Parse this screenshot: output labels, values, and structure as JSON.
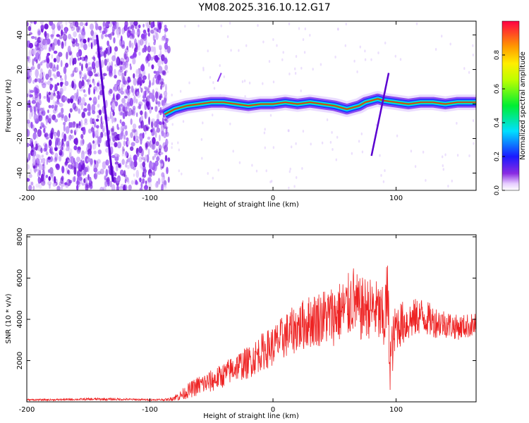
{
  "figure": {
    "title": "YM08.2025.316.10.12.G17"
  },
  "chart_data": [
    {
      "type": "heatmap",
      "title": "YM08.2025.316.10.12.G17",
      "xlabel": "Height of straight line (km)",
      "ylabel": "Frequency (Hz)",
      "xlim": [
        -200,
        165
      ],
      "ylim": [
        -50,
        48
      ],
      "x_ticks": [
        -200,
        -100,
        0,
        100
      ],
      "y_ticks": [
        -40,
        -20,
        0,
        20,
        40
      ],
      "x_tick_labels": [
        "-200",
        "-100",
        "0",
        "100"
      ],
      "y_tick_labels": [
        "-40",
        "-20",
        "0",
        "20",
        "40"
      ],
      "noise_region_x": [
        -200,
        -88
      ],
      "signal_track": {
        "x": [
          -88,
          -80,
          -70,
          -60,
          -50,
          -40,
          -30,
          -20,
          -10,
          0,
          10,
          20,
          30,
          40,
          50,
          55,
          60,
          65,
          70,
          75,
          80,
          85,
          90,
          100,
          110,
          120,
          130,
          140,
          150,
          160,
          165
        ],
        "frequency_hz": [
          -6,
          -3,
          -1,
          0,
          1,
          1,
          0,
          -1,
          0,
          0,
          1,
          0,
          1,
          0,
          -1,
          -2,
          -3,
          -2,
          -1,
          1,
          2,
          3,
          2,
          1,
          0,
          1,
          1,
          0,
          1,
          1,
          1
        ]
      },
      "colorbar": {
        "label": "Normalized spectral amplitude",
        "range": [
          0,
          1
        ],
        "ticks": [
          0.0,
          0.2,
          0.4,
          0.6,
          0.8
        ],
        "tick_labels": [
          "0.0",
          "0.2",
          "0.4",
          "0.6",
          "0.8"
        ]
      }
    },
    {
      "type": "line",
      "xlabel": "Height of straight line (km)",
      "ylabel": "SNR (10 * v/v)",
      "xlim": [
        -200,
        165
      ],
      "ylim": [
        0,
        8100
      ],
      "x_ticks": [
        -200,
        -100,
        0,
        100
      ],
      "y_ticks": [
        2000,
        4000,
        6000,
        8000
      ],
      "x_tick_labels": [
        "-200",
        "-100",
        "0",
        "100"
      ],
      "y_tick_labels": [
        "2000",
        "4000",
        "6000",
        "8000"
      ],
      "series": [
        {
          "name": "SNR",
          "color": "#ee2222",
          "x": [
            -200,
            -180,
            -160,
            -140,
            -120,
            -100,
            -85,
            -75,
            -70,
            -60,
            -50,
            -40,
            -30,
            -20,
            -10,
            0,
            10,
            20,
            30,
            40,
            50,
            55,
            60,
            65,
            70,
            75,
            80,
            85,
            90,
            93,
            95,
            100,
            110,
            120,
            130,
            140,
            150,
            160,
            165
          ],
          "y": [
            100,
            100,
            120,
            130,
            120,
            100,
            110,
            300,
            500,
            800,
            1000,
            1300,
            1700,
            1900,
            2400,
            2700,
            3200,
            3600,
            3900,
            4100,
            4200,
            4400,
            4500,
            5000,
            4400,
            4600,
            4500,
            4400,
            3800,
            5200,
            2000,
            3700,
            3900,
            4200,
            3900,
            3800,
            3600,
            3700,
            3700
          ],
          "amplitude": [
            40,
            40,
            50,
            60,
            50,
            40,
            60,
            250,
            350,
            500,
            550,
            600,
            700,
            800,
            900,
            1000,
            1100,
            1200,
            1300,
            1400,
            1500,
            1500,
            1600,
            1700,
            1600,
            1500,
            1500,
            1500,
            1700,
            1900,
            1500,
            1200,
            1000,
            900,
            800,
            700,
            600,
            600,
            600
          ]
        }
      ]
    }
  ],
  "colors": {
    "axis": "#000000",
    "snr_line": "#ee2222",
    "noise": "#7a1fe0",
    "track_core": "#ff1a1a"
  }
}
